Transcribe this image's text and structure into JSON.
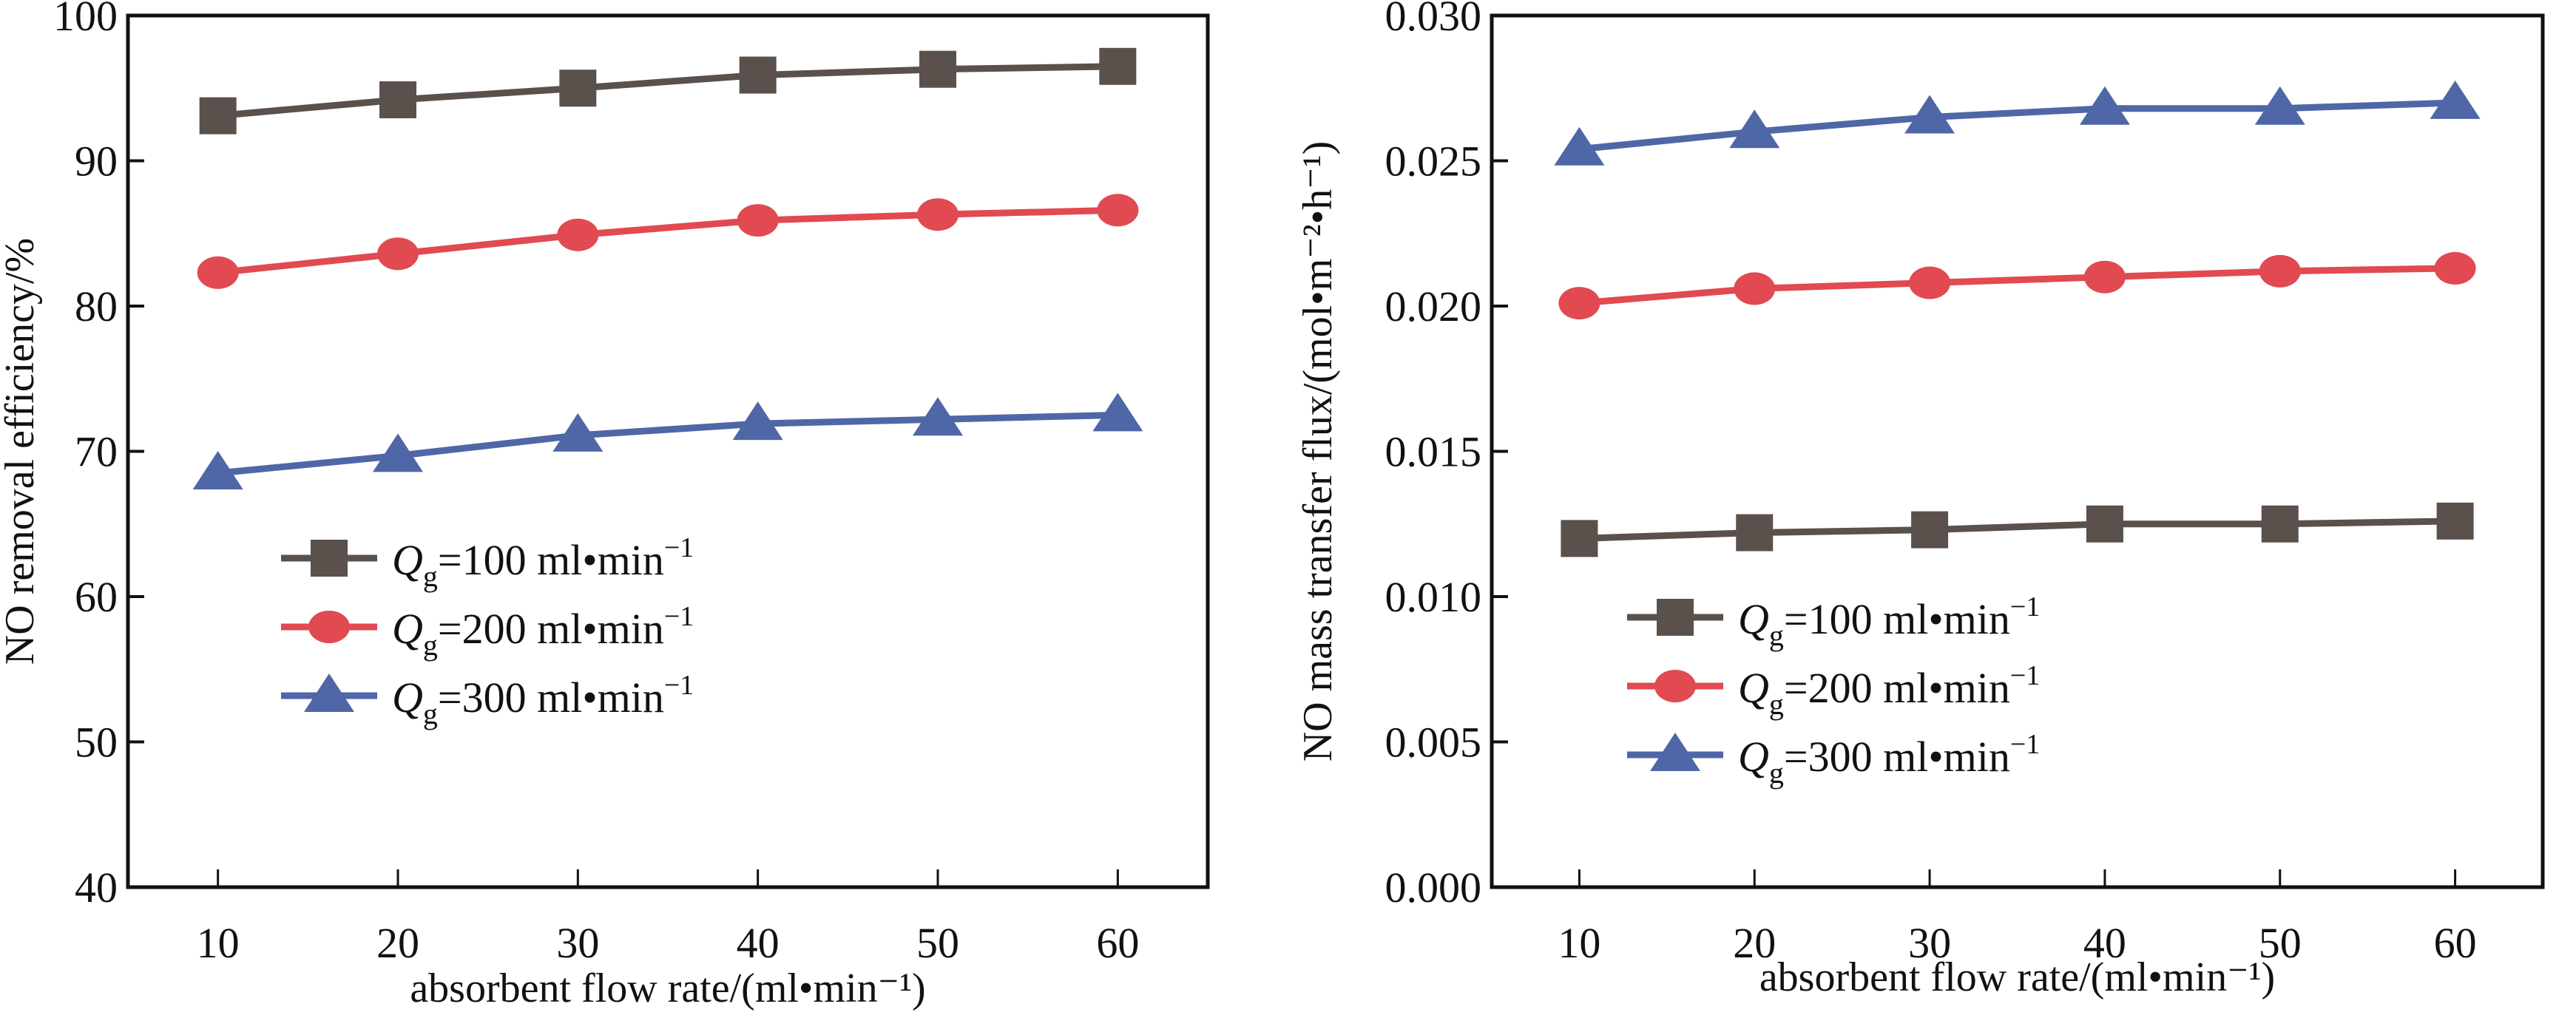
{
  "chart_data": [
    {
      "type": "line",
      "title": "",
      "xlabel": "absorbent flow rate/(ml•min⁻¹)",
      "ylabel": "NO removal efficiency/%",
      "x": [
        10,
        20,
        30,
        40,
        50,
        60
      ],
      "xticks": [
        "10",
        "20",
        "30",
        "40",
        "50",
        "60"
      ],
      "yticks": [
        "40",
        "50",
        "60",
        "70",
        "80",
        "90",
        "100"
      ],
      "ytick_values": [
        40,
        50,
        60,
        70,
        80,
        90,
        100
      ],
      "xlim": [
        5,
        65
      ],
      "ylim": [
        40,
        100
      ],
      "grid": false,
      "legend_position": "center-left",
      "series": [
        {
          "name": "Qg=100 ml•min⁻¹",
          "label_main": "Q",
          "label_sub": "g",
          "label_rest": "=100  ml•min",
          "label_sup": "−1",
          "color": "#5a504c",
          "marker": "square",
          "values": [
            93.1,
            94.2,
            95.0,
            95.9,
            96.3,
            96.5
          ]
        },
        {
          "name": "Qg=200 ml•min⁻¹",
          "label_main": "Q",
          "label_sub": "g",
          "label_rest": "=200  ml•min",
          "label_sup": "−1",
          "color": "#e04a50",
          "marker": "circle",
          "values": [
            82.3,
            83.6,
            84.9,
            85.9,
            86.3,
            86.6
          ]
        },
        {
          "name": "Qg=300 ml•min⁻¹",
          "label_main": "Q",
          "label_sub": "g",
          "label_rest": "=300  ml•min",
          "label_sup": "−1",
          "color": "#4f67a6",
          "marker": "triangle",
          "values": [
            68.5,
            69.7,
            71.1,
            71.9,
            72.2,
            72.5
          ]
        }
      ]
    },
    {
      "type": "line",
      "title": "",
      "xlabel": "absorbent flow rate/(ml•min⁻¹)",
      "ylabel": "NO mass transfer flux/(mol•m⁻²•h⁻¹)",
      "x": [
        10,
        20,
        30,
        40,
        50,
        60
      ],
      "xticks": [
        "10",
        "20",
        "30",
        "40",
        "50",
        "60"
      ],
      "yticks": [
        "0.000",
        "0.005",
        "0.010",
        "0.015",
        "0.020",
        "0.025",
        "0.030"
      ],
      "ytick_values": [
        0,
        0.005,
        0.01,
        0.015,
        0.02,
        0.025,
        0.03
      ],
      "xlim": [
        5,
        65
      ],
      "ylim": [
        0,
        0.03
      ],
      "grid": false,
      "legend_position": "lower-left",
      "series": [
        {
          "name": "Qg=100 ml•min⁻¹",
          "label_main": "Q",
          "label_sub": "g",
          "label_rest": "=100  ml•min",
          "label_sup": "−1",
          "color": "#5a504c",
          "marker": "square",
          "values": [
            0.012,
            0.0122,
            0.0123,
            0.0125,
            0.0125,
            0.0126
          ]
        },
        {
          "name": "Qg=200 ml•min⁻¹",
          "label_main": "Q",
          "label_sub": "g",
          "label_rest": "=200  ml•min",
          "label_sup": "−1",
          "color": "#e04a50",
          "marker": "circle",
          "values": [
            0.0201,
            0.0206,
            0.0208,
            0.021,
            0.0212,
            0.0213
          ]
        },
        {
          "name": "Qg=300 ml•min⁻¹",
          "label_main": "Q",
          "label_sub": "g",
          "label_rest": "=300  ml•min",
          "label_sup": "−1",
          "color": "#4f67a6",
          "marker": "triangle",
          "values": [
            0.0254,
            0.026,
            0.0265,
            0.0268,
            0.0268,
            0.027
          ]
        }
      ]
    }
  ]
}
